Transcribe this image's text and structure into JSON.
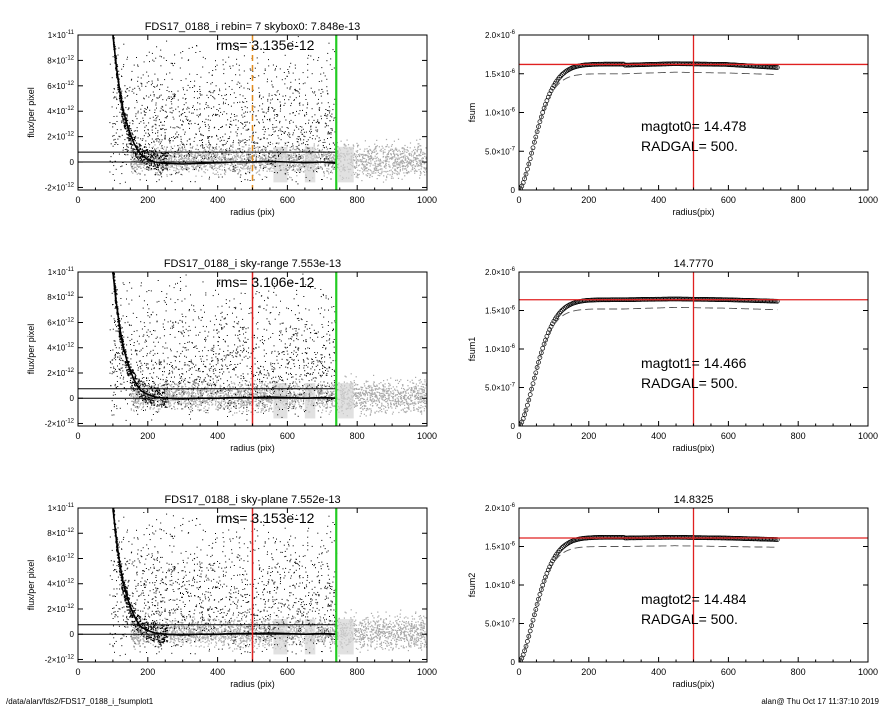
{
  "footer": {
    "path": "/data/alan/fds2/FDS17_0188_i_fsumplot1",
    "user_time": "alan@  Thu Oct 17 11:37:10 2019"
  },
  "colors": {
    "scatter_gray": "#a8a8a8",
    "scatter_black": "#000000",
    "red": "#e02020",
    "green": "#22cc22",
    "orange": "#e08a1e",
    "dash_gray": "#555555"
  },
  "chart_data": [
    {
      "type": "scatter",
      "title": "FDS17_0188_i rebin= 7    skybox0:  7.848e-13",
      "annotation": "rms= 3.135e-12",
      "xlabel": "radius (pix)",
      "ylabel": "flux/per pixel",
      "xlim": [
        0,
        1000
      ],
      "ylim": [
        -2.2e-12,
        1e-11
      ],
      "xticks": [
        "0",
        "200",
        "400",
        "600",
        "800",
        "1000"
      ],
      "yticks": [
        {
          "value": 1e-11,
          "mant": "1×10",
          "exp": "-11"
        },
        {
          "value": 8e-12,
          "mant": "8×10",
          "exp": "-12"
        },
        {
          "value": 6e-12,
          "mant": "6×10",
          "exp": "-12"
        },
        {
          "value": 4e-12,
          "mant": "4×10",
          "exp": "-12"
        },
        {
          "value": 2e-12,
          "mant": "2×10",
          "exp": "-12"
        },
        {
          "value": 0,
          "mant": "0",
          "exp": ""
        },
        {
          "value": -2e-12,
          "mant": "-2×10",
          "exp": "-12"
        }
      ],
      "hlines": [
        7.848e-13,
        0
      ],
      "vline_radius": {
        "x": 500,
        "color": "orange",
        "dashed": true
      },
      "vline_sky": {
        "x": 740,
        "color": "green"
      },
      "profile": {
        "x": [
          100,
          110,
          120,
          130,
          140,
          150,
          160,
          170,
          180,
          200,
          220,
          250,
          300,
          350,
          400,
          450,
          500,
          550,
          600,
          650,
          700,
          740
        ],
        "y": [
          1e-11,
          7.5e-12,
          5.5e-12,
          4e-12,
          3e-12,
          2.2e-12,
          1.5e-12,
          1e-12,
          6e-13,
          2e-13,
          0,
          -1e-13,
          -1.5e-13,
          -1e-13,
          -5e-14,
          0,
          0,
          5e-14,
          0,
          -5e-14,
          0,
          -1e-13
        ]
      }
    },
    {
      "type": "line",
      "title": "",
      "xlabel": "radius(pix)",
      "ylabel": "fsum",
      "xlim": [
        0,
        1000
      ],
      "ylim": [
        0,
        2e-06
      ],
      "xticks": [
        "0",
        "200",
        "400",
        "600",
        "800",
        "1000"
      ],
      "yticks": [
        {
          "value": 2e-06,
          "mant": "2.0×10",
          "exp": "-6"
        },
        {
          "value": 1.5e-06,
          "mant": "1.5×10",
          "exp": "-6"
        },
        {
          "value": 1e-06,
          "mant": "1.0×10",
          "exp": "-6"
        },
        {
          "value": 5e-07,
          "mant": "5.0×10",
          "exp": "-7"
        },
        {
          "value": 0,
          "mant": "0",
          "exp": ""
        }
      ],
      "annotation_lines": [
        "magtot0=  14.478",
        "RADGAL=    500."
      ],
      "hline": 1.62e-06,
      "vline": 500,
      "plateau": 1.625e-06,
      "dashed_plateau": 1.5e-06,
      "tail": [
        1.61e-06,
        1.63e-06,
        1.62e-06,
        1.58e-06
      ],
      "dashed_tail": [
        1.5e-06,
        1.52e-06,
        1.51e-06,
        1.49e-06
      ]
    },
    {
      "type": "scatter",
      "title": "FDS17_0188_i sky-range  7.553e-13",
      "annotation": "rms= 3.106e-12",
      "xlabel": "radius (pix)",
      "ylabel": "flux/per pixel",
      "xlim": [
        0,
        1000
      ],
      "ylim": [
        -2.2e-12,
        1e-11
      ],
      "xticks": [
        "0",
        "200",
        "400",
        "600",
        "800",
        "1000"
      ],
      "yticks": [
        {
          "value": 1e-11,
          "mant": "1×10",
          "exp": "-11"
        },
        {
          "value": 8e-12,
          "mant": "8×10",
          "exp": "-12"
        },
        {
          "value": 6e-12,
          "mant": "6×10",
          "exp": "-12"
        },
        {
          "value": 4e-12,
          "mant": "4×10",
          "exp": "-12"
        },
        {
          "value": 2e-12,
          "mant": "2×10",
          "exp": "-12"
        },
        {
          "value": 0,
          "mant": "0",
          "exp": ""
        },
        {
          "value": -2e-12,
          "mant": "-2×10",
          "exp": "-12"
        }
      ],
      "hlines": [
        7.553e-13,
        0
      ],
      "vline_radius": {
        "x": 500,
        "color": "red",
        "dashed": false
      },
      "vline_sky": {
        "x": 740,
        "color": "green"
      },
      "profile": {
        "x": [
          100,
          110,
          120,
          130,
          140,
          150,
          160,
          170,
          180,
          200,
          220,
          250,
          300,
          350,
          400,
          450,
          500,
          550,
          600,
          650,
          700,
          740
        ],
        "y": [
          1e-11,
          7.5e-12,
          5.5e-12,
          4e-12,
          3e-12,
          2.2e-12,
          1.5e-12,
          1e-12,
          6e-13,
          3e-13,
          1e-13,
          0,
          -5e-14,
          0,
          0,
          5e-14,
          5e-14,
          1e-13,
          5e-14,
          0,
          5e-14,
          0
        ]
      }
    },
    {
      "type": "line",
      "title": "14.7770",
      "xlabel": "radius(pix)",
      "ylabel": "fsum1",
      "xlim": [
        0,
        1000
      ],
      "ylim": [
        0,
        2e-06
      ],
      "xticks": [
        "0",
        "200",
        "400",
        "600",
        "800",
        "1000"
      ],
      "yticks": [
        {
          "value": 2e-06,
          "mant": "2.0×10",
          "exp": "-6"
        },
        {
          "value": 1.5e-06,
          "mant": "1.5×10",
          "exp": "-6"
        },
        {
          "value": 1e-06,
          "mant": "1.0×10",
          "exp": "-6"
        },
        {
          "value": 5e-07,
          "mant": "5.0×10",
          "exp": "-7"
        },
        {
          "value": 0,
          "mant": "0",
          "exp": ""
        }
      ],
      "annotation_lines": [
        "magtot1=  14.466",
        "RADGAL=    500."
      ],
      "hline": 1.64e-06,
      "vline": 500,
      "plateau": 1.64e-06,
      "dashed_plateau": 1.52e-06,
      "tail": [
        1.64e-06,
        1.65e-06,
        1.64e-06,
        1.62e-06
      ],
      "dashed_tail": [
        1.52e-06,
        1.54e-06,
        1.53e-06,
        1.51e-06
      ]
    },
    {
      "type": "scatter",
      "title": "FDS17_0188_i sky-plane  7.552e-13",
      "annotation": "rms= 3.153e-12",
      "xlabel": "radius (pix)",
      "ylabel": "flux/per pixel",
      "xlim": [
        0,
        1000
      ],
      "ylim": [
        -2.2e-12,
        1e-11
      ],
      "xticks": [
        "0",
        "200",
        "400",
        "600",
        "800",
        "1000"
      ],
      "yticks": [
        {
          "value": 1e-11,
          "mant": "1×10",
          "exp": "-11"
        },
        {
          "value": 8e-12,
          "mant": "8×10",
          "exp": "-12"
        },
        {
          "value": 6e-12,
          "mant": "6×10",
          "exp": "-12"
        },
        {
          "value": 4e-12,
          "mant": "4×10",
          "exp": "-12"
        },
        {
          "value": 2e-12,
          "mant": "2×10",
          "exp": "-12"
        },
        {
          "value": 0,
          "mant": "0",
          "exp": ""
        },
        {
          "value": -2e-12,
          "mant": "-2×10",
          "exp": "-12"
        }
      ],
      "hlines": [
        7.552e-13,
        0
      ],
      "vline_radius": {
        "x": 500,
        "color": "red",
        "dashed": false
      },
      "vline_sky": {
        "x": 740,
        "color": "green"
      },
      "profile": {
        "x": [
          100,
          110,
          120,
          130,
          140,
          150,
          160,
          170,
          180,
          200,
          220,
          250,
          300,
          350,
          400,
          450,
          500,
          550,
          600,
          650,
          700,
          740
        ],
        "y": [
          1e-11,
          7.5e-12,
          5.5e-12,
          4e-12,
          3e-12,
          2.2e-12,
          1.5e-12,
          1e-12,
          6e-13,
          3e-13,
          1e-13,
          0,
          -5e-14,
          0,
          0,
          5e-14,
          5e-14,
          1e-13,
          5e-14,
          0,
          5e-14,
          0
        ]
      }
    },
    {
      "type": "line",
      "title": "14.8325",
      "xlabel": "radius(pix)",
      "ylabel": "fsum2",
      "xlim": [
        0,
        1000
      ],
      "ylim": [
        0,
        2e-06
      ],
      "xticks": [
        "0",
        "200",
        "400",
        "600",
        "800",
        "1000"
      ],
      "yticks": [
        {
          "value": 2e-06,
          "mant": "2.0×10",
          "exp": "-6"
        },
        {
          "value": 1.5e-06,
          "mant": "1.5×10",
          "exp": "-6"
        },
        {
          "value": 1e-06,
          "mant": "1.0×10",
          "exp": "-6"
        },
        {
          "value": 5e-07,
          "mant": "5.0×10",
          "exp": "-7"
        },
        {
          "value": 0,
          "mant": "0",
          "exp": ""
        }
      ],
      "annotation_lines": [
        "magtot2=  14.484",
        "RADGAL=    500."
      ],
      "hline": 1.61e-06,
      "vline": 500,
      "plateau": 1.62e-06,
      "dashed_plateau": 1.5e-06,
      "tail": [
        1.61e-06,
        1.62e-06,
        1.61e-06,
        1.59e-06
      ],
      "dashed_tail": [
        1.5e-06,
        1.51e-06,
        1.5e-06,
        1.49e-06
      ]
    }
  ]
}
